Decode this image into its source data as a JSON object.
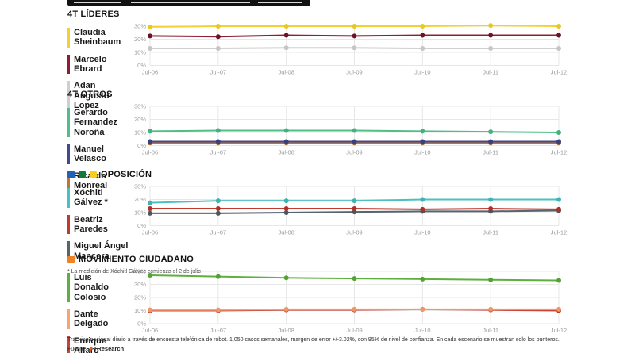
{
  "banner": {
    "note": "titulo recortado"
  },
  "sections": [
    {
      "title": "4T LÍDERES",
      "legend": [
        {
          "name": "Claudia Sheinbaum",
          "color": "#F2D230"
        },
        {
          "name": "Marcelo Ebrard",
          "color": "#8E1D35"
        },
        {
          "name": "Adan Augusto Lopez",
          "color": "#CFCFCF"
        }
      ]
    },
    {
      "title": "4T OTROS",
      "legend": [
        {
          "name": "Gerardo Fernandez Noroña",
          "color": "#4FBD8C"
        },
        {
          "name": "Manuel Velasco",
          "color": "#44498E"
        },
        {
          "name": "Ricardo Monreal",
          "color": "#BE7434"
        }
      ]
    },
    {
      "title": "OPOSICIÓN",
      "icons": [
        {
          "id": "pan-logo",
          "color": "#1E63B5"
        },
        {
          "id": "pri-logo",
          "color": "#0E7A3C"
        },
        {
          "id": "prd-logo",
          "color": "#F5CF1B"
        }
      ],
      "legend": [
        {
          "name": "Xóchitl Gálvez *",
          "color": "#4CBFC0"
        },
        {
          "name": "Beatriz Paredes",
          "color": "#C03A2E"
        },
        {
          "name": "Miguel Ángel Mancera",
          "color": "#56646C"
        }
      ],
      "footnote": "* La medición de Xóchitl Gálvez comienza el 2 de julio"
    },
    {
      "title": "MOVIMIENTO CIUDADANO",
      "icons": [
        {
          "id": "mc-logo",
          "color": "#F08224"
        }
      ],
      "legend": [
        {
          "name": "Luis Donaldo Colosio",
          "color": "#5EB03C"
        },
        {
          "name": "Dante Delgado",
          "color": "#F5A475"
        },
        {
          "name": "Enrique Alfaro",
          "color": "#CC4437"
        }
      ]
    }
  ],
  "footer": {
    "line1": "Tracking nacional diario a través de encuesta telefónica de robot. 1,050 casos semanales, margen de error +/-3.02%, con 95% de nivel de confianza. En cada escenario se muestran solo los punteros.",
    "source_label": "Fuente:",
    "source_name": "TResearch"
  },
  "chart_data": [
    {
      "type": "line",
      "title": "4T LÍDERES",
      "x": [
        "Jul-06",
        "Jul-07",
        "Jul-08",
        "Jul-09",
        "Jul-10",
        "Jul-11",
        "Jul-12"
      ],
      "ylim": [
        0,
        30
      ],
      "yticks": [
        0,
        10,
        20,
        30
      ],
      "unit": "%",
      "grid": true,
      "legend_position": "left",
      "series": [
        {
          "name": "Adan Augusto Lopez",
          "color": "#CFCFCF",
          "dot": "#C6C6C6",
          "values": [
            13,
            13,
            13.5,
            13.5,
            13,
            13,
            13
          ]
        },
        {
          "name": "Marcelo Ebrard",
          "color": "#8E1D35",
          "dot": "#6E1128",
          "values": [
            22.5,
            22,
            23,
            22.5,
            23,
            23,
            23
          ]
        },
        {
          "name": "Claudia Sheinbaum",
          "color": "#F2D230",
          "dot": "#E9C825",
          "values": [
            29.5,
            30,
            30,
            30,
            30,
            30.5,
            30
          ]
        }
      ]
    },
    {
      "type": "line",
      "title": "4T OTROS",
      "x": [
        "Jul-06",
        "Jul-07",
        "Jul-08",
        "Jul-09",
        "Jul-10",
        "Jul-11",
        "Jul-12"
      ],
      "ylim": [
        0,
        30
      ],
      "yticks": [
        0,
        10,
        20,
        30
      ],
      "unit": "%",
      "grid": true,
      "legend_position": "left",
      "series": [
        {
          "name": "Ricardo Monreal",
          "color": "#BE7434",
          "dot": "#A96426",
          "values": [
            2,
            2,
            2,
            2,
            2,
            2,
            2
          ]
        },
        {
          "name": "Manuel Velasco",
          "color": "#44498E",
          "dot": "#3A3F7E",
          "values": [
            3,
            3,
            3,
            3,
            3,
            3,
            3
          ]
        },
        {
          "name": "Gerardo Fernandez Noroña",
          "color": "#4FBD8C",
          "dot": "#43B180",
          "values": [
            11,
            11.5,
            11.5,
            11.5,
            11,
            10.5,
            10
          ]
        }
      ]
    },
    {
      "type": "line",
      "title": "OPOSICIÓN",
      "x": [
        "Jul-06",
        "Jul-07",
        "Jul-08",
        "Jul-09",
        "Jul-10",
        "Jul-11",
        "Jul-12"
      ],
      "ylim": [
        0,
        30
      ],
      "yticks": [
        0,
        10,
        20,
        30
      ],
      "unit": "%",
      "grid": true,
      "legend_position": "left",
      "series": [
        {
          "name": "Miguel Ángel Mancera",
          "color": "#56646C",
          "dot": "#4A575F",
          "values": [
            9.5,
            9.5,
            10,
            10.5,
            11,
            11,
            11.5
          ]
        },
        {
          "name": "Beatriz Paredes",
          "color": "#C03A2E",
          "dot": "#AD3126",
          "values": [
            13,
            13,
            13,
            13,
            12.5,
            13,
            12.5
          ]
        },
        {
          "name": "Xóchitl Gálvez",
          "color": "#4CBFC0",
          "dot": "#3FB2B3",
          "values": [
            17.5,
            19,
            19,
            19,
            20,
            20,
            20
          ]
        }
      ]
    },
    {
      "type": "line",
      "title": "MOVIMIENTO CIUDADANO",
      "x": [
        "Jul-06",
        "Jul-07",
        "Jul-08",
        "Jul-09",
        "Jul-10",
        "Jul-11",
        "Jul-12"
      ],
      "ylim": [
        0,
        40
      ],
      "yticks": [
        0,
        10,
        20,
        30,
        40
      ],
      "unit": "%",
      "grid": true,
      "legend_position": "left",
      "series": [
        {
          "name": "Enrique Alfaro",
          "color": "#CC4437",
          "dot": "#B93A2E",
          "values": [
            10,
            10,
            10.5,
            10.5,
            11,
            10.5,
            10
          ]
        },
        {
          "name": "Dante Delgado",
          "color": "#F5A475",
          "dot": "#EF9663",
          "values": [
            10.5,
            10.5,
            11,
            11,
            11,
            11,
            11
          ]
        },
        {
          "name": "Luis Donaldo Colosio",
          "color": "#5EB03C",
          "dot": "#52A332",
          "values": [
            37,
            36,
            35,
            34.5,
            34,
            33.5,
            33
          ]
        }
      ]
    }
  ]
}
